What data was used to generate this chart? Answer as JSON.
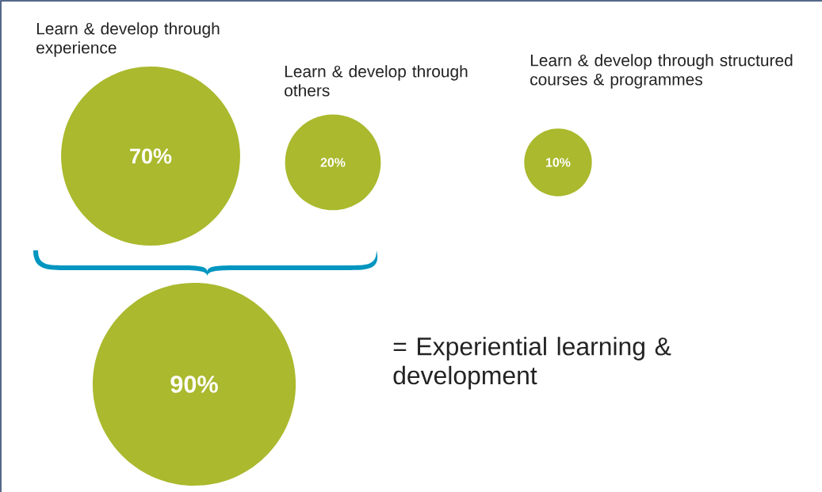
{
  "chart_data": {
    "type": "other",
    "categories": [
      "Learn & develop through experience",
      "Learn & develop through others",
      "Learn & develop through structured courses & programmes",
      "= Experiential learning & development"
    ],
    "values": [
      70,
      20,
      10,
      90
    ],
    "value_labels": [
      "70%",
      "20%",
      "10%",
      "90%"
    ],
    "color": "#aab92d"
  }
}
